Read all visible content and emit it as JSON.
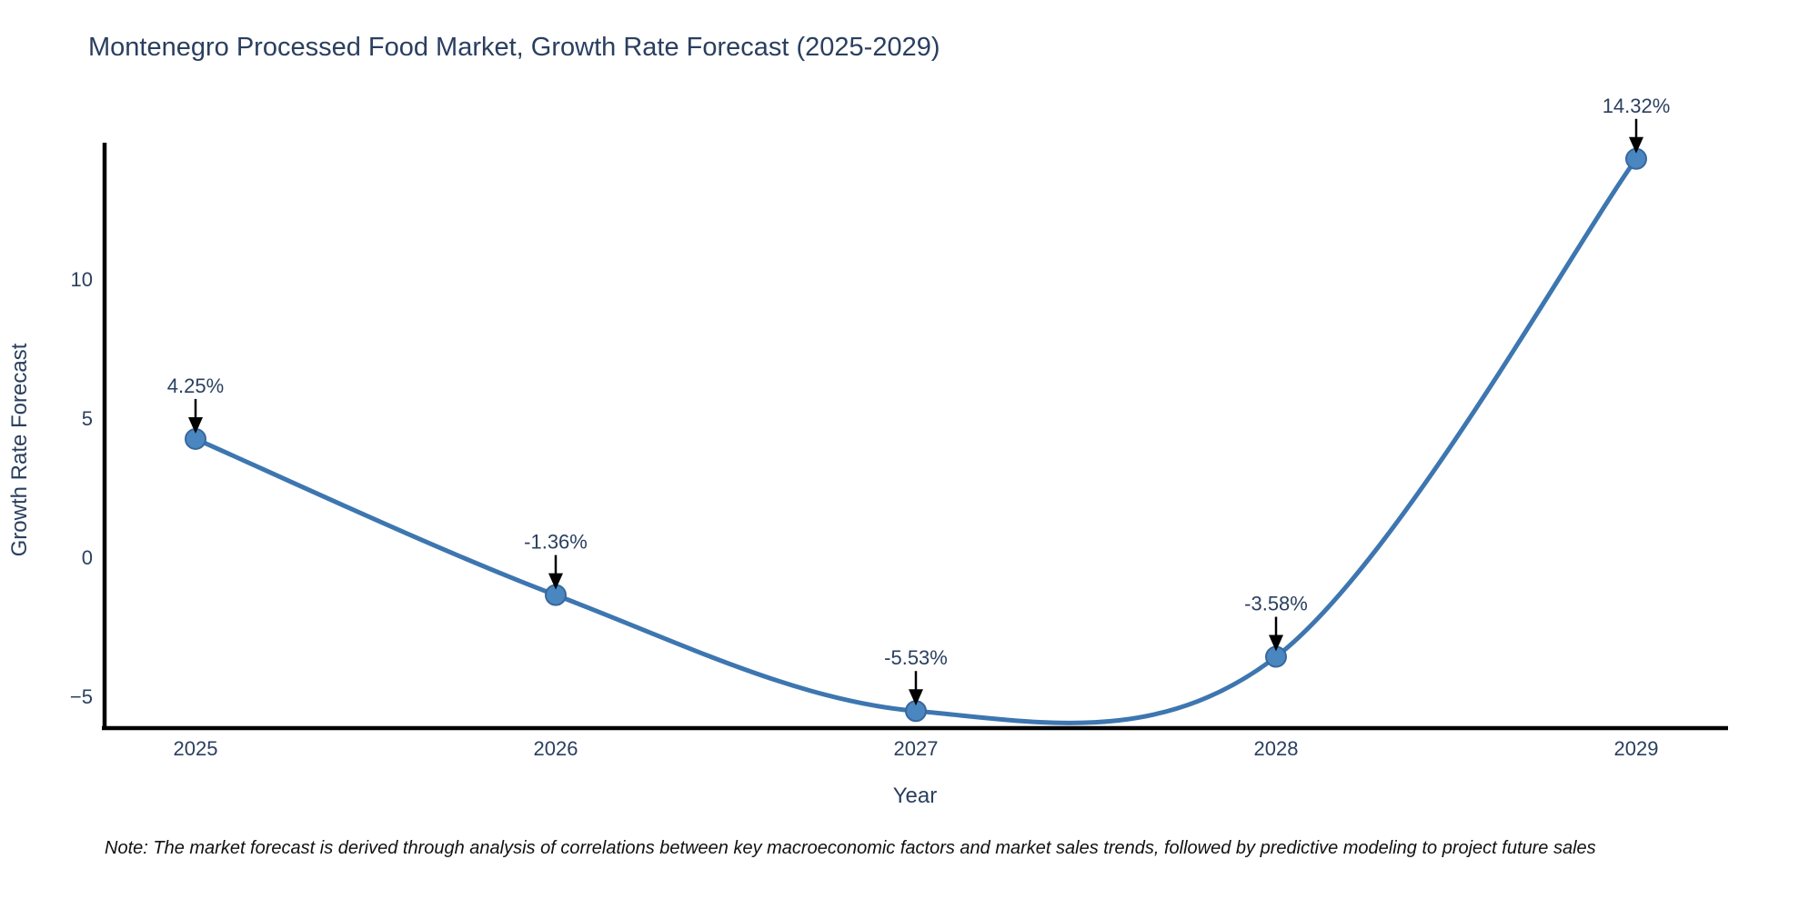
{
  "title": "Montenegro Processed Food Market, Growth Rate Forecast (2025-2029)",
  "note": "Note: The market forecast is derived through analysis of correlations between key macroeconomic factors and market sales trends, followed by predictive modeling to project future sales",
  "chart_data": {
    "type": "line",
    "title": "Montenegro Processed Food Market, Growth Rate Forecast (2025-2029)",
    "x": [
      2025,
      2026,
      2027,
      2028,
      2029
    ],
    "series": [
      {
        "name": "Growth Rate Forecast",
        "values": [
          4.25,
          -1.36,
          -5.53,
          -3.58,
          14.32
        ]
      }
    ],
    "point_labels": [
      "4.25%",
      "-1.36%",
      "-5.53%",
      "-3.58%",
      "14.32%"
    ],
    "xlabel": "Year",
    "ylabel": "Growth Rate Forecast",
    "xtick_labels": [
      "2025",
      "2026",
      "2027",
      "2028",
      "2029"
    ],
    "yticks": [
      10,
      5,
      0,
      -5
    ],
    "ylim": [
      -6.2,
      14.9
    ],
    "grid": false,
    "legend": "none",
    "line_shape": "spline",
    "annotations_have_arrows": true,
    "colors": {
      "line": "#3d76b0",
      "marker": "#4a87c0",
      "marker_edge": "#38689c",
      "text": "#2a3f5f",
      "axis": "#000000",
      "arrow": "#000000",
      "background": "#ffffff"
    }
  }
}
